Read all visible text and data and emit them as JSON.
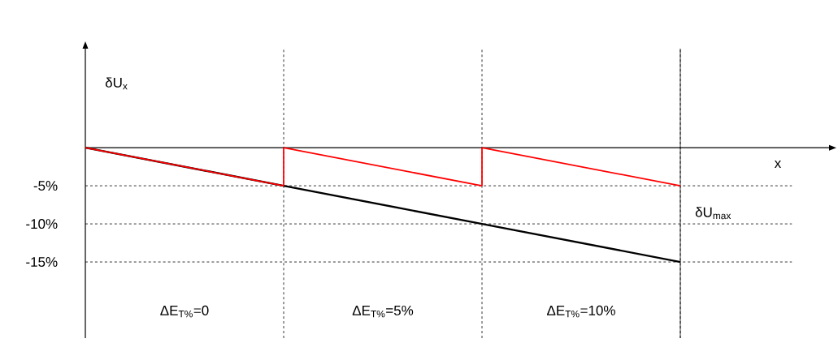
{
  "chart_data": {
    "type": "line",
    "xlabel": "x",
    "ylabel": "δU$_{x}$",
    "categories": [
      null,
      null,
      null,
      null
    ],
    "ylim": [
      -25,
      13
    ],
    "yticks": [
      {
        "value": -15,
        "label": "-15%"
      },
      {
        "value": -10,
        "label": "-10%"
      },
      {
        "value": -5,
        "label": "-5%"
      }
    ],
    "tick_labels": "y",
    "grid": "x",
    "marker": "none",
    "series": [
      {
        "color": "#000000",
        "line_style": "solid",
        "values": [
          0,
          -5,
          -10,
          -15
        ]
      },
      {
        "color": "#ff0000",
        "line_style": "solid",
        "values": [
          0,
          -5,
          null,
          null
        ]
      },
      {
        "color": "#ff0000",
        "line_style": "solid",
        "values": [
          null,
          0,
          -5,
          null
        ],
        "errors": [
          null,
          [
            -5,
            0
          ],
          null,
          null
        ]
      },
      {
        "color": "#ff0000",
        "line_style": "solid",
        "values": [
          null,
          null,
          0,
          -5
        ],
        "errors": [
          null,
          null,
          [
            -5,
            0
          ],
          null
        ]
      }
    ],
    "ref_lines": [
      {
        "axis": "y",
        "value": -5,
        "line_style": "dashed",
        "color": "#000000"
      },
      {
        "axis": "y",
        "value": -10,
        "line_style": "dashed",
        "color": "#000000",
        "label": "δU$_{max}$"
      },
      {
        "axis": "y",
        "value": -15,
        "line_style": "dashed",
        "color": "#000000"
      }
    ],
    "annotations": [
      "ΔE$_{T%}$=0",
      "ΔE$_{T%}$=5%",
      "ΔE$_{T%}$=10%"
    ]
  }
}
